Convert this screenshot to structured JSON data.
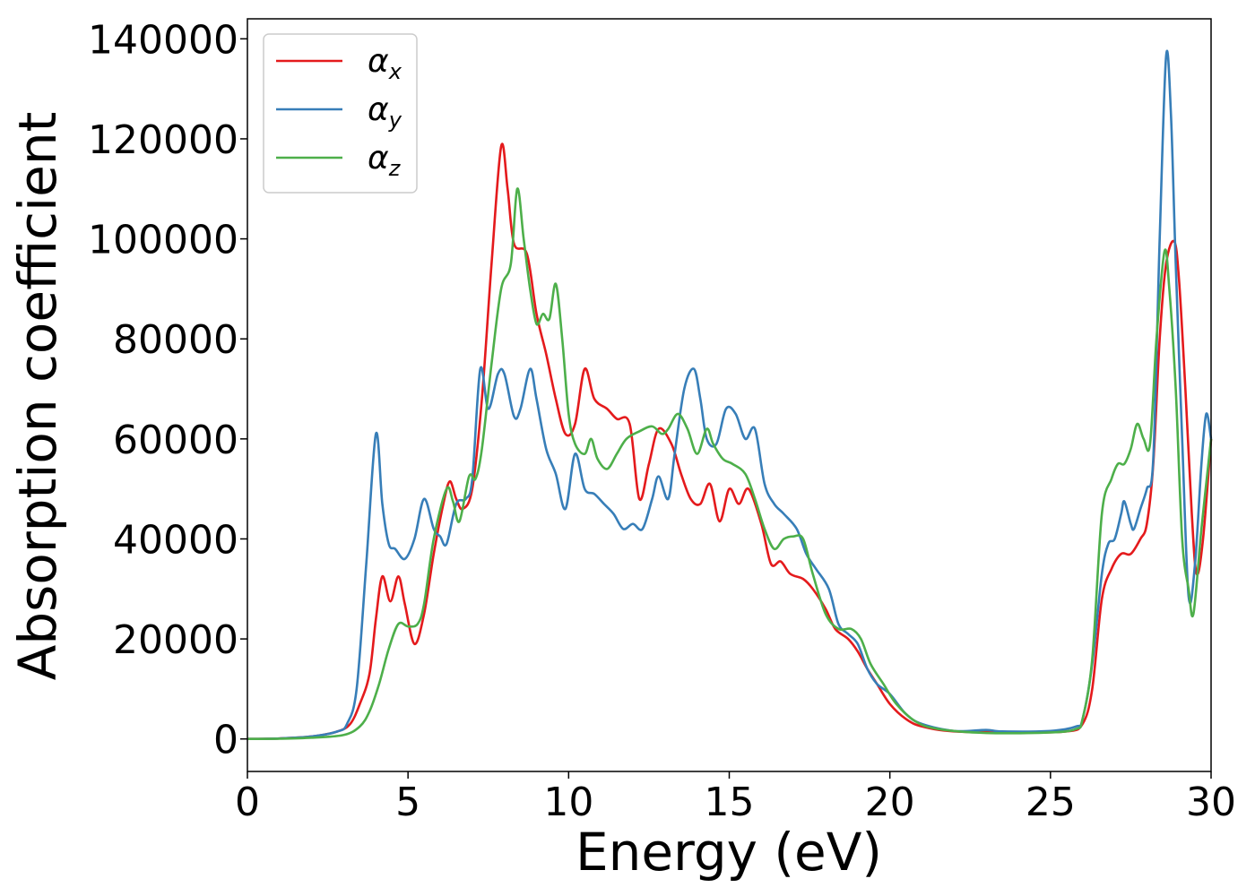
{
  "chart_data": {
    "type": "line",
    "title": "",
    "xlabel": "Energy (eV)",
    "ylabel": "Absorption coefficient",
    "xlim": [
      0,
      30
    ],
    "ylim": [
      -6500,
      144000
    ],
    "xticks": [
      0,
      5,
      10,
      15,
      20,
      25,
      30
    ],
    "xtick_labels": [
      "0",
      "5",
      "10",
      "15",
      "20",
      "25",
      "30"
    ],
    "yticks": [
      0,
      20000,
      40000,
      60000,
      80000,
      100000,
      120000,
      140000
    ],
    "ytick_labels": [
      "0",
      "20000",
      "40000",
      "60000",
      "80000",
      "100000",
      "120000",
      "140000"
    ],
    "grid": false,
    "legend_position": "top-left",
    "series": [
      {
        "name": "αx",
        "symbol": "α",
        "subscript": "x",
        "color": "#e41a1c",
        "points": [
          [
            0,
            0
          ],
          [
            1,
            100
          ],
          [
            2,
            500
          ],
          [
            2.8,
            1500
          ],
          [
            3.2,
            3000
          ],
          [
            3.5,
            7000
          ],
          [
            3.8,
            13000
          ],
          [
            4.0,
            24000
          ],
          [
            4.2,
            32500
          ],
          [
            4.45,
            27500
          ],
          [
            4.7,
            32500
          ],
          [
            4.9,
            27000
          ],
          [
            5.2,
            19000
          ],
          [
            5.5,
            25000
          ],
          [
            5.8,
            37000
          ],
          [
            6.1,
            47000
          ],
          [
            6.3,
            51500
          ],
          [
            6.5,
            48000
          ],
          [
            6.7,
            46000
          ],
          [
            7.0,
            50000
          ],
          [
            7.3,
            68000
          ],
          [
            7.6,
            95000
          ],
          [
            7.9,
            118500
          ],
          [
            8.1,
            110000
          ],
          [
            8.3,
            99000
          ],
          [
            8.7,
            97000
          ],
          [
            9.0,
            85000
          ],
          [
            9.3,
            77000
          ],
          [
            9.6,
            68000
          ],
          [
            9.9,
            61000
          ],
          [
            10.2,
            63000
          ],
          [
            10.5,
            74000
          ],
          [
            10.8,
            68000
          ],
          [
            11.2,
            66000
          ],
          [
            11.5,
            64000
          ],
          [
            11.9,
            63000
          ],
          [
            12.2,
            48000
          ],
          [
            12.5,
            55000
          ],
          [
            12.8,
            62000
          ],
          [
            13.2,
            59000
          ],
          [
            13.5,
            53000
          ],
          [
            13.8,
            48000
          ],
          [
            14.1,
            47000
          ],
          [
            14.4,
            51000
          ],
          [
            14.7,
            43500
          ],
          [
            15.0,
            50000
          ],
          [
            15.3,
            47000
          ],
          [
            15.6,
            50000
          ],
          [
            16.0,
            43000
          ],
          [
            16.3,
            35000
          ],
          [
            16.6,
            35500
          ],
          [
            16.9,
            33000
          ],
          [
            17.3,
            32000
          ],
          [
            17.6,
            30000
          ],
          [
            18.0,
            26000
          ],
          [
            18.3,
            22000
          ],
          [
            18.7,
            20000
          ],
          [
            19.0,
            17500
          ],
          [
            19.3,
            14000
          ],
          [
            19.6,
            11000
          ],
          [
            20.0,
            7000
          ],
          [
            20.5,
            4000
          ],
          [
            21.0,
            2500
          ],
          [
            22.0,
            1500
          ],
          [
            24.0,
            1300
          ],
          [
            25.5,
            1500
          ],
          [
            26.0,
            3000
          ],
          [
            26.3,
            10000
          ],
          [
            26.6,
            28000
          ],
          [
            26.9,
            34000
          ],
          [
            27.2,
            37000
          ],
          [
            27.5,
            37000
          ],
          [
            27.8,
            40000
          ],
          [
            28.0,
            43000
          ],
          [
            28.2,
            55000
          ],
          [
            28.4,
            80000
          ],
          [
            28.6,
            95000
          ],
          [
            28.85,
            99500
          ],
          [
            29.0,
            92000
          ],
          [
            29.2,
            70000
          ],
          [
            29.4,
            45000
          ],
          [
            29.55,
            33000
          ],
          [
            29.75,
            40000
          ],
          [
            30.0,
            60000
          ]
        ]
      },
      {
        "name": "αy",
        "symbol": "α",
        "subscript": "y",
        "color": "#377eb8",
        "points": [
          [
            0,
            0
          ],
          [
            1,
            100
          ],
          [
            2,
            500
          ],
          [
            2.8,
            1500
          ],
          [
            3.1,
            3000
          ],
          [
            3.4,
            10000
          ],
          [
            3.7,
            35000
          ],
          [
            4.0,
            61000
          ],
          [
            4.2,
            47000
          ],
          [
            4.4,
            39000
          ],
          [
            4.6,
            38000
          ],
          [
            4.9,
            36000
          ],
          [
            5.2,
            40000
          ],
          [
            5.5,
            48000
          ],
          [
            5.8,
            42000
          ],
          [
            6.0,
            40500
          ],
          [
            6.2,
            39000
          ],
          [
            6.5,
            47000
          ],
          [
            6.8,
            48000
          ],
          [
            7.0,
            52000
          ],
          [
            7.25,
            74000
          ],
          [
            7.5,
            66000
          ],
          [
            7.8,
            73000
          ],
          [
            8.0,
            73000
          ],
          [
            8.3,
            64500
          ],
          [
            8.5,
            66000
          ],
          [
            8.8,
            74000
          ],
          [
            9.0,
            68000
          ],
          [
            9.3,
            58000
          ],
          [
            9.6,
            53000
          ],
          [
            9.9,
            46000
          ],
          [
            10.2,
            57000
          ],
          [
            10.5,
            50000
          ],
          [
            10.8,
            49000
          ],
          [
            11.1,
            47000
          ],
          [
            11.4,
            45000
          ],
          [
            11.7,
            42000
          ],
          [
            12.0,
            43000
          ],
          [
            12.3,
            42000
          ],
          [
            12.6,
            48000
          ],
          [
            12.8,
            52500
          ],
          [
            13.1,
            48000
          ],
          [
            13.3,
            57000
          ],
          [
            13.6,
            70000
          ],
          [
            13.9,
            74000
          ],
          [
            14.1,
            68000
          ],
          [
            14.3,
            60000
          ],
          [
            14.6,
            59000
          ],
          [
            14.9,
            66000
          ],
          [
            15.2,
            65000
          ],
          [
            15.5,
            60000
          ],
          [
            15.8,
            62000
          ],
          [
            16.1,
            51000
          ],
          [
            16.4,
            47000
          ],
          [
            16.7,
            45000
          ],
          [
            17.1,
            42000
          ],
          [
            17.4,
            37000
          ],
          [
            17.7,
            34000
          ],
          [
            18.1,
            30000
          ],
          [
            18.4,
            23000
          ],
          [
            18.7,
            21000
          ],
          [
            19.0,
            19000
          ],
          [
            19.3,
            14000
          ],
          [
            19.6,
            11000
          ],
          [
            20.0,
            9000
          ],
          [
            20.5,
            5000
          ],
          [
            21.0,
            3000
          ],
          [
            22.0,
            1600
          ],
          [
            23.0,
            1800
          ],
          [
            23.5,
            1500
          ],
          [
            25.0,
            1600
          ],
          [
            25.8,
            2500
          ],
          [
            26.0,
            4000
          ],
          [
            26.3,
            15000
          ],
          [
            26.6,
            33000
          ],
          [
            26.8,
            39000
          ],
          [
            27.0,
            40000
          ],
          [
            27.2,
            45000
          ],
          [
            27.3,
            47500
          ],
          [
            27.5,
            43000
          ],
          [
            27.6,
            42000
          ],
          [
            27.8,
            46000
          ],
          [
            28.0,
            50000
          ],
          [
            28.2,
            56000
          ],
          [
            28.4,
            100000
          ],
          [
            28.6,
            136500
          ],
          [
            28.75,
            125000
          ],
          [
            28.9,
            95000
          ],
          [
            29.1,
            60000
          ],
          [
            29.3,
            28500
          ],
          [
            29.5,
            35000
          ],
          [
            29.7,
            55000
          ],
          [
            29.85,
            65000
          ],
          [
            30.0,
            60000
          ]
        ]
      },
      {
        "name": "αz",
        "symbol": "α",
        "subscript": "z",
        "color": "#4daf4a",
        "points": [
          [
            0,
            0
          ],
          [
            1,
            50
          ],
          [
            2,
            250
          ],
          [
            3,
            800
          ],
          [
            3.5,
            2500
          ],
          [
            3.8,
            5500
          ],
          [
            4.1,
            11000
          ],
          [
            4.4,
            18000
          ],
          [
            4.7,
            23000
          ],
          [
            5.0,
            22500
          ],
          [
            5.3,
            23000
          ],
          [
            5.5,
            27000
          ],
          [
            5.8,
            40000
          ],
          [
            6.2,
            50000
          ],
          [
            6.4,
            47500
          ],
          [
            6.6,
            43500
          ],
          [
            6.9,
            52500
          ],
          [
            7.1,
            52000
          ],
          [
            7.3,
            58000
          ],
          [
            7.6,
            75000
          ],
          [
            7.9,
            90000
          ],
          [
            8.2,
            95000
          ],
          [
            8.4,
            110000
          ],
          [
            8.6,
            100000
          ],
          [
            8.8,
            90000
          ],
          [
            9.0,
            83000
          ],
          [
            9.2,
            85000
          ],
          [
            9.4,
            84000
          ],
          [
            9.6,
            91000
          ],
          [
            9.8,
            80000
          ],
          [
            10.0,
            65000
          ],
          [
            10.2,
            59000
          ],
          [
            10.5,
            57000
          ],
          [
            10.7,
            60000
          ],
          [
            10.9,
            56000
          ],
          [
            11.2,
            54000
          ],
          [
            11.5,
            57000
          ],
          [
            11.8,
            60000
          ],
          [
            12.2,
            61500
          ],
          [
            12.6,
            62500
          ],
          [
            12.9,
            61000
          ],
          [
            13.1,
            62000
          ],
          [
            13.4,
            65000
          ],
          [
            13.7,
            62000
          ],
          [
            14.0,
            57000
          ],
          [
            14.3,
            62000
          ],
          [
            14.5,
            59000
          ],
          [
            14.8,
            56000
          ],
          [
            15.1,
            55000
          ],
          [
            15.5,
            53000
          ],
          [
            15.8,
            48000
          ],
          [
            16.1,
            42000
          ],
          [
            16.4,
            38000
          ],
          [
            16.7,
            40000
          ],
          [
            17.0,
            40500
          ],
          [
            17.3,
            40000
          ],
          [
            17.6,
            33000
          ],
          [
            18.0,
            25000
          ],
          [
            18.4,
            22000
          ],
          [
            18.8,
            22000
          ],
          [
            19.1,
            20000
          ],
          [
            19.4,
            15000
          ],
          [
            19.8,
            11000
          ],
          [
            20.2,
            7000
          ],
          [
            20.8,
            3500
          ],
          [
            21.5,
            2000
          ],
          [
            23,
            1200
          ],
          [
            25,
            1300
          ],
          [
            25.8,
            2000
          ],
          [
            26.0,
            4000
          ],
          [
            26.3,
            16000
          ],
          [
            26.6,
            45000
          ],
          [
            26.9,
            52000
          ],
          [
            27.1,
            55000
          ],
          [
            27.3,
            55000
          ],
          [
            27.5,
            58000
          ],
          [
            27.7,
            63000
          ],
          [
            27.9,
            60000
          ],
          [
            28.1,
            59000
          ],
          [
            28.3,
            80000
          ],
          [
            28.55,
            97500
          ],
          [
            28.7,
            90000
          ],
          [
            28.9,
            70000
          ],
          [
            29.1,
            40000
          ],
          [
            29.3,
            30000
          ],
          [
            29.45,
            25000
          ],
          [
            29.7,
            42000
          ],
          [
            30.0,
            60000
          ]
        ]
      }
    ]
  }
}
